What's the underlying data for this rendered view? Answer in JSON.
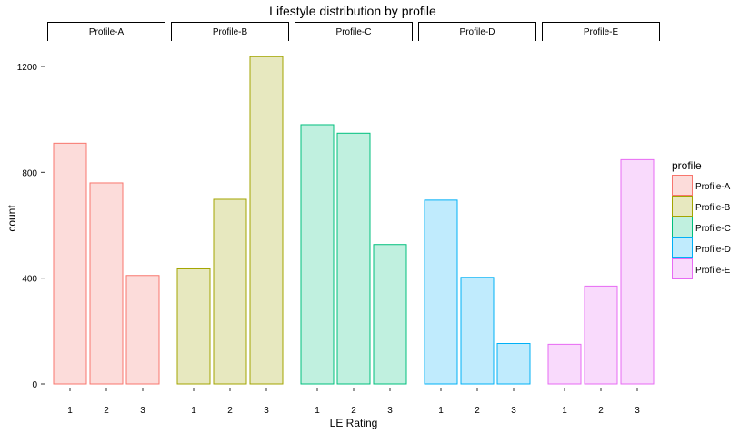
{
  "chart_data": {
    "type": "bar",
    "title": "Lifestyle distribution by profile",
    "xlabel": "LE Rating",
    "ylabel": "count",
    "ylim": [
      0,
      1240
    ],
    "yticks": [
      0,
      400,
      800,
      1200
    ],
    "categories": [
      "1",
      "2",
      "3"
    ],
    "facets": [
      "Profile-A",
      "Profile-B",
      "Profile-C",
      "Profile-D",
      "Profile-E"
    ],
    "legend": {
      "title": "profile",
      "position": "right"
    },
    "grid": false,
    "series": [
      {
        "name": "Profile-A",
        "values": [
          910,
          760,
          410
        ],
        "stroke": "#F8766D",
        "fill": "#FCDCDA"
      },
      {
        "name": "Profile-B",
        "values": [
          435,
          698,
          1237
        ],
        "stroke": "#A3A500",
        "fill": "#E7E8BF"
      },
      {
        "name": "Profile-C",
        "values": [
          980,
          948,
          527
        ],
        "stroke": "#00BF7D",
        "fill": "#C0F0DF"
      },
      {
        "name": "Profile-D",
        "values": [
          695,
          403,
          153
        ],
        "stroke": "#00B0F6",
        "fill": "#C0EBFD"
      },
      {
        "name": "Profile-E",
        "values": [
          150,
          370,
          848
        ],
        "stroke": "#E76BF3",
        "fill": "#F9DAFC"
      }
    ]
  }
}
